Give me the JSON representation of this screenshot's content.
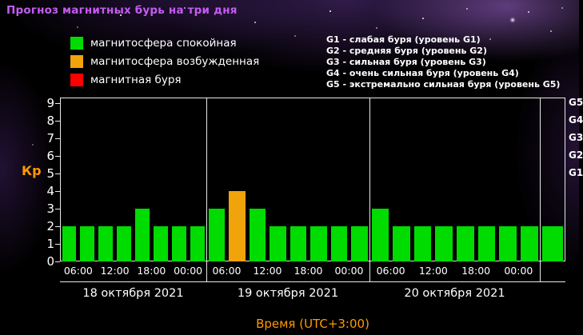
{
  "title": "Прогноз магнитных бурь на три дня",
  "legend": {
    "items": [
      {
        "key": "quiet",
        "label": "магнитосфера спокойная",
        "color": "#00dc00"
      },
      {
        "key": "excited",
        "label": "магнитосфера возбужденная",
        "color": "#f0a30a"
      },
      {
        "key": "storm",
        "label": "магнитная буря",
        "color": "#ff0000"
      }
    ]
  },
  "levels_legend": [
    "G1 - слабая буря (уровень G1)",
    "G2 - средняя буря (уровень G2)",
    "G3 - сильная буря (уровень G3)",
    "G4 - очень сильная буря (уровень G4)",
    "G5 - экстремально сильная буря (уровень G5)"
  ],
  "chart_data": {
    "type": "bar",
    "title": "Прогноз магнитных бурь на три дня",
    "ylabel": "Кр",
    "xlabel": "Время (UTC+3:00)",
    "ylim": [
      0,
      9
    ],
    "yticks": [
      0,
      1,
      2,
      3,
      4,
      5,
      6,
      7,
      8,
      9
    ],
    "grid": false,
    "legend_position": "top-left",
    "time_ticks": [
      "06:00",
      "12:00",
      "18:00",
      "00:00"
    ],
    "right_axis_labels": [
      {
        "label": "G1",
        "kp": 5
      },
      {
        "label": "G2",
        "kp": 6
      },
      {
        "label": "G3",
        "kp": 7
      },
      {
        "label": "G4",
        "kp": 8
      },
      {
        "label": "G5",
        "kp": 9
      }
    ],
    "days": [
      {
        "date": "18 октября 2021",
        "values": [
          2,
          2,
          2,
          2,
          3,
          2,
          2,
          2
        ],
        "statuses": [
          "quiet",
          "quiet",
          "quiet",
          "quiet",
          "quiet",
          "quiet",
          "quiet",
          "quiet"
        ]
      },
      {
        "date": "19 октября 2021",
        "values": [
          3,
          4,
          3,
          2,
          2,
          2,
          2,
          2
        ],
        "statuses": [
          "quiet",
          "excited",
          "quiet",
          "quiet",
          "quiet",
          "quiet",
          "quiet",
          "quiet"
        ]
      },
      {
        "date": "20 октября 2021",
        "values": [
          3,
          2,
          2,
          2,
          2,
          2,
          2,
          2
        ],
        "statuses": [
          "quiet",
          "quiet",
          "quiet",
          "quiet",
          "quiet",
          "quiet",
          "quiet",
          "quiet"
        ]
      }
    ],
    "trailing_bar": {
      "value": 2,
      "status": "quiet"
    },
    "status_colors": {
      "quiet": "#00dc00",
      "excited": "#f0a30a",
      "storm": "#ff0000"
    }
  },
  "colors": {
    "background": "#000000",
    "title": "#c55bf2",
    "axis_accent": "#ff9900",
    "axis_text": "#ffffff"
  }
}
